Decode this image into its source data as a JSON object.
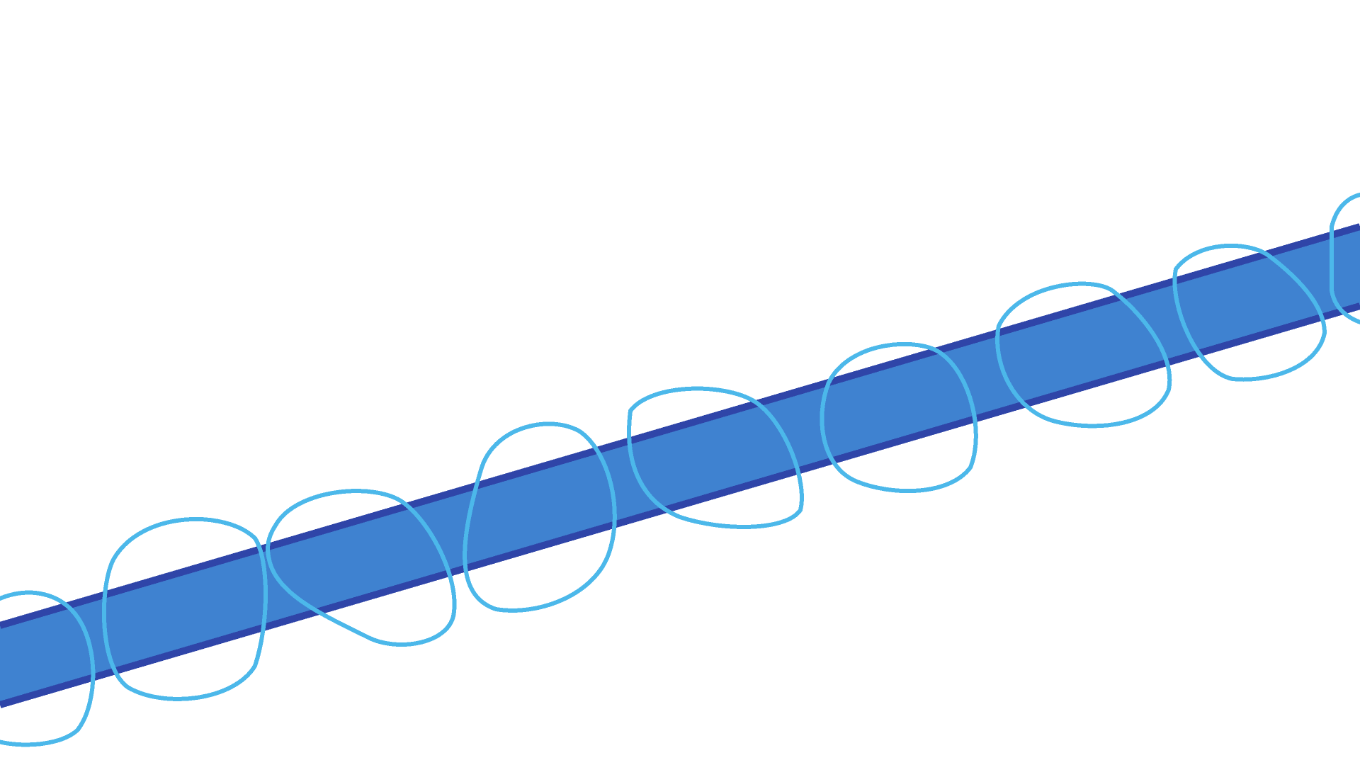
{
  "canvas": {
    "background_color": "#ffffff"
  },
  "band": {
    "fill_color": "#3f82d0",
    "edge_color": "#2f45a8"
  },
  "loops": {
    "stroke_color": "#4cb8ea",
    "count": 8
  }
}
